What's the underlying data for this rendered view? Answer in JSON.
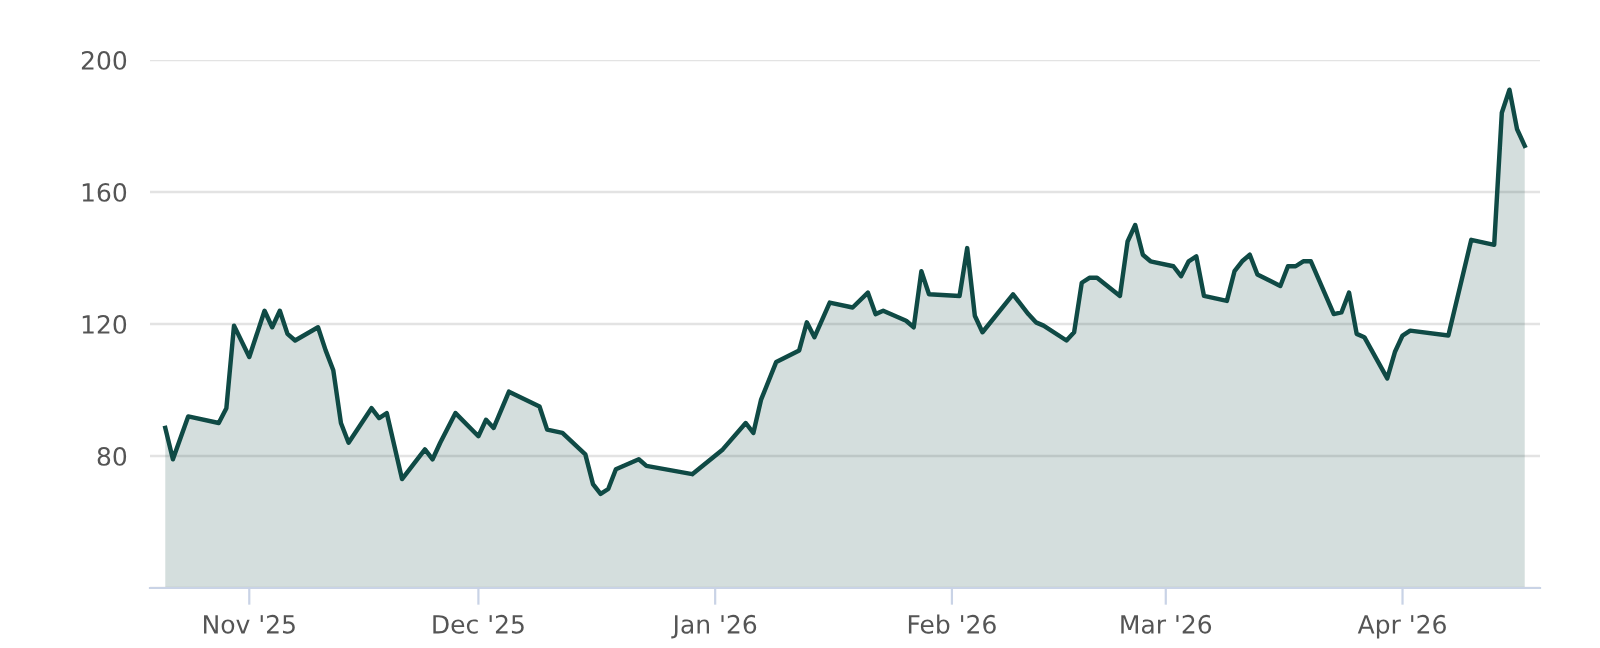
{
  "chart_data": {
    "type": "area",
    "grid": "y",
    "ylim": [
      40,
      200
    ],
    "yticks": [
      {
        "value": 40,
        "label": null
      },
      80,
      120,
      160,
      200
    ],
    "xlim": [
      "2025-10-19",
      "2026-04-19"
    ],
    "xticks": [
      {
        "value": "2025-11-01",
        "label": "Nov '25"
      },
      {
        "value": "2025-12-01",
        "label": "Dec '25"
      },
      {
        "value": "2026-01-01",
        "label": "Jan '26"
      },
      {
        "value": "2026-02-01",
        "label": "Feb '26"
      },
      {
        "value": "2026-03-01",
        "label": "Mar '26"
      },
      {
        "value": "2026-04-01",
        "label": "Apr '26"
      }
    ],
    "series": [
      {
        "color": "#0f4a45",
        "x": [
          "2025-10-21",
          "2025-10-22",
          "2025-10-24",
          "2025-10-28",
          "2025-10-29",
          "2025-10-30",
          "2025-11-01",
          "2025-11-03",
          "2025-11-04",
          "2025-11-05",
          "2025-11-06",
          "2025-11-07",
          "2025-11-10",
          "2025-11-11",
          "2025-11-12",
          "2025-11-13",
          "2025-11-14",
          "2025-11-17",
          "2025-11-18",
          "2025-11-19",
          "2025-11-21",
          "2025-11-24",
          "2025-11-25",
          "2025-11-26",
          "2025-11-28",
          "2025-12-01",
          "2025-12-02",
          "2025-12-03",
          "2025-12-05",
          "2025-12-09",
          "2025-12-10",
          "2025-12-12",
          "2025-12-15",
          "2025-12-16",
          "2025-12-17",
          "2025-12-18",
          "2025-12-19",
          "2025-12-22",
          "2025-12-23",
          "2025-12-29",
          "2026-01-02",
          "2026-01-05",
          "2026-01-06",
          "2026-01-07",
          "2026-01-09",
          "2026-01-12",
          "2026-01-13",
          "2026-01-14",
          "2026-01-16",
          "2026-01-19",
          "2026-01-21",
          "2026-01-22",
          "2026-01-23",
          "2026-01-26",
          "2026-01-27",
          "2026-01-28",
          "2026-01-29",
          "2026-02-02",
          "2026-02-03",
          "2026-02-04",
          "2026-02-05",
          "2026-02-09",
          "2026-02-11",
          "2026-02-12",
          "2026-02-13",
          "2026-02-16",
          "2026-02-17",
          "2026-02-18",
          "2026-02-19",
          "2026-02-20",
          "2026-02-23",
          "2026-02-24",
          "2026-02-25",
          "2026-02-26",
          "2026-02-27",
          "2026-03-02",
          "2026-03-03",
          "2026-03-04",
          "2026-03-05",
          "2026-03-06",
          "2026-03-09",
          "2026-03-10",
          "2026-03-11",
          "2026-03-12",
          "2026-03-13",
          "2026-03-16",
          "2026-03-17",
          "2026-03-18",
          "2026-03-19",
          "2026-03-20",
          "2026-03-23",
          "2026-03-24",
          "2026-03-25",
          "2026-03-26",
          "2026-03-27",
          "2026-03-30",
          "2026-03-31",
          "2026-04-01",
          "2026-04-02",
          "2026-04-07",
          "2026-04-10",
          "2026-04-13",
          "2026-04-14",
          "2026-04-15",
          "2026-04-16",
          "2026-04-17"
        ],
        "values": [
          88.5,
          79,
          92,
          90,
          94.5,
          119.5,
          110,
          124,
          119,
          124,
          117,
          115,
          119,
          112,
          106,
          90,
          84,
          94.5,
          91.5,
          93,
          73,
          82,
          79,
          84,
          93,
          86,
          91,
          88.5,
          99.5,
          95,
          88,
          87,
          80.5,
          71.5,
          68.5,
          70,
          76,
          79,
          77,
          74.5,
          82,
          90,
          87,
          97,
          108.5,
          112,
          120.5,
          116,
          126.5,
          125,
          129.5,
          123,
          124,
          121,
          119,
          136,
          129,
          128.5,
          143,
          122.5,
          117.5,
          129,
          123,
          120.5,
          119.5,
          115,
          117.5,
          132.5,
          134,
          134,
          128.5,
          145,
          150,
          141,
          139,
          137.5,
          134.5,
          139,
          140.5,
          128.5,
          127,
          136,
          139,
          141,
          135,
          131.5,
          137.5,
          137.5,
          139,
          139,
          123,
          123.5,
          129.5,
          117,
          116,
          103.5,
          111.5,
          116.5,
          118,
          116.5,
          145.5,
          144,
          184,
          191,
          179,
          174
        ]
      }
    ]
  }
}
